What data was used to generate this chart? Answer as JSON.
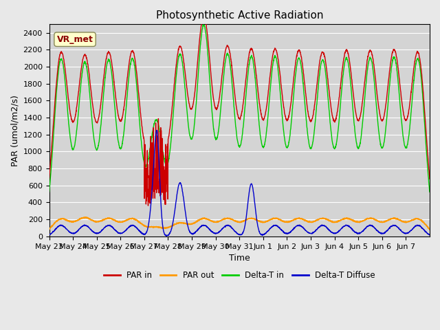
{
  "title": "Photosynthetic Active Radiation",
  "ylabel": "PAR (umol/m2/s)",
  "xlabel": "Time",
  "annotation": "VR_met",
  "ylim": [
    0,
    2500
  ],
  "yticks": [
    0,
    200,
    400,
    600,
    800,
    1000,
    1200,
    1400,
    1600,
    1800,
    2000,
    2200,
    2400
  ],
  "background_color": "#e8e8e8",
  "axes_facecolor": "#d4d4d4",
  "legend_labels": [
    "PAR in",
    "PAR out",
    "Delta-T in",
    "Delta-T Diffuse"
  ],
  "colors": {
    "PAR_in": "#cc0000",
    "PAR_out": "#ff9900",
    "Delta_T_in": "#00cc00",
    "Delta_T_Diffuse": "#0000cc"
  },
  "xtick_labels": [
    "May 23",
    "May 24",
    "May 25",
    "May 26",
    "May 27",
    "May 28",
    "May 29",
    "May 30",
    "May 31",
    "Jun 1",
    "Jun 2",
    "Jun 3",
    "Jun 4",
    "Jun 5",
    "Jun 6",
    "Jun 7"
  ],
  "n_days": 16,
  "par_in_peaks": [
    2150,
    2100,
    2130,
    2150,
    1400,
    2200,
    2550,
    2200,
    2170,
    2170,
    2150,
    2130,
    2150,
    2150,
    2160,
    2150
  ],
  "par_out_peaks": [
    200,
    210,
    200,
    200,
    100,
    150,
    200,
    200,
    200,
    200,
    200,
    200,
    200,
    200,
    200,
    200
  ]
}
